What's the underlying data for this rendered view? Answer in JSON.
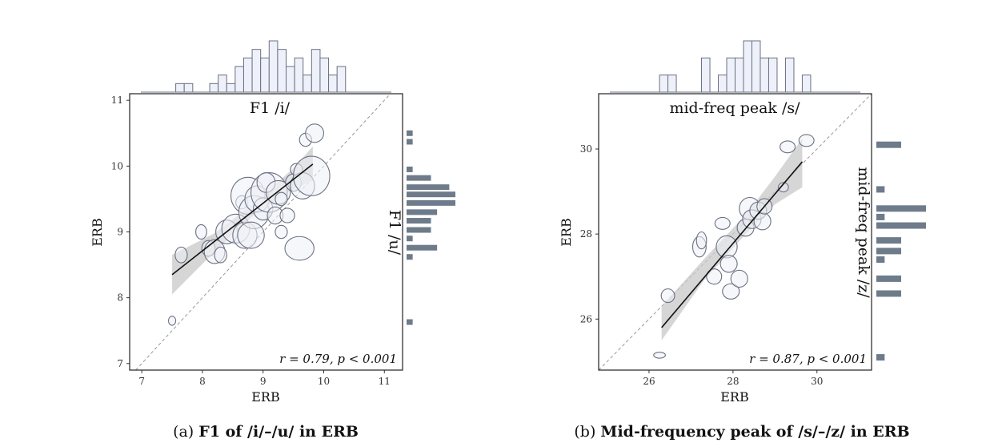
{
  "captions": [
    {
      "prefix": "(a)",
      "title": "F1 of /i/–/u/ in ERB"
    },
    {
      "prefix": "(b)",
      "title": "Mid-frequency peak of /s/–/z/ in ERB"
    }
  ],
  "chart_data": [
    {
      "type": "scatter",
      "title": "F1 /i/",
      "right_label": "F1 /u/",
      "xlabel": "ERB",
      "ylabel": "ERB",
      "xlim": [
        6.8,
        11.3
      ],
      "ylim": [
        6.9,
        11.1
      ],
      "xticks": [
        7,
        8,
        9,
        10,
        11
      ],
      "yticks": [
        7,
        8,
        9,
        10,
        11
      ],
      "stat": "r = 0.79, p < 0.001",
      "fit": {
        "x": [
          7.5,
          9.82
        ],
        "y": [
          8.35,
          10.03
        ]
      },
      "band": {
        "x": [
          7.5,
          8.2,
          8.9,
          9.5,
          9.82
        ],
        "lo": [
          8.05,
          8.7,
          9.3,
          9.65,
          9.78
        ],
        "hi": [
          8.65,
          8.98,
          9.47,
          9.97,
          10.3
        ]
      },
      "points": [
        {
          "x": 7.5,
          "y": 7.65,
          "rx": 0.06,
          "ry": 0.07
        },
        {
          "x": 7.65,
          "y": 8.65,
          "rx": 0.1,
          "ry": 0.12
        },
        {
          "x": 7.98,
          "y": 9.0,
          "rx": 0.09,
          "ry": 0.11
        },
        {
          "x": 8.1,
          "y": 8.75,
          "rx": 0.11,
          "ry": 0.12
        },
        {
          "x": 8.2,
          "y": 8.7,
          "rx": 0.17,
          "ry": 0.18
        },
        {
          "x": 8.3,
          "y": 8.65,
          "rx": 0.1,
          "ry": 0.12
        },
        {
          "x": 8.4,
          "y": 9.0,
          "rx": 0.18,
          "ry": 0.18
        },
        {
          "x": 8.55,
          "y": 9.05,
          "rx": 0.23,
          "ry": 0.22
        },
        {
          "x": 8.65,
          "y": 9.45,
          "rx": 0.1,
          "ry": 0.1
        },
        {
          "x": 8.7,
          "y": 8.95,
          "rx": 0.2,
          "ry": 0.2
        },
        {
          "x": 8.75,
          "y": 9.55,
          "rx": 0.28,
          "ry": 0.28
        },
        {
          "x": 8.85,
          "y": 9.3,
          "rx": 0.25,
          "ry": 0.25
        },
        {
          "x": 8.8,
          "y": 8.95,
          "rx": 0.22,
          "ry": 0.2
        },
        {
          "x": 8.9,
          "y": 9.5,
          "rx": 0.2,
          "ry": 0.2
        },
        {
          "x": 9.0,
          "y": 9.35,
          "rx": 0.16,
          "ry": 0.17
        },
        {
          "x": 9.1,
          "y": 9.6,
          "rx": 0.3,
          "ry": 0.3
        },
        {
          "x": 9.05,
          "y": 9.75,
          "rx": 0.15,
          "ry": 0.15
        },
        {
          "x": 9.2,
          "y": 9.25,
          "rx": 0.13,
          "ry": 0.13
        },
        {
          "x": 9.25,
          "y": 9.6,
          "rx": 0.2,
          "ry": 0.18
        },
        {
          "x": 9.3,
          "y": 9.5,
          "rx": 0.1,
          "ry": 0.1
        },
        {
          "x": 9.3,
          "y": 9.0,
          "rx": 0.1,
          "ry": 0.1
        },
        {
          "x": 9.4,
          "y": 9.25,
          "rx": 0.12,
          "ry": 0.11
        },
        {
          "x": 9.5,
          "y": 9.75,
          "rx": 0.13,
          "ry": 0.13
        },
        {
          "x": 9.55,
          "y": 9.95,
          "rx": 0.1,
          "ry": 0.09
        },
        {
          "x": 9.6,
          "y": 8.75,
          "rx": 0.24,
          "ry": 0.18
        },
        {
          "x": 9.65,
          "y": 9.7,
          "rx": 0.2,
          "ry": 0.2
        },
        {
          "x": 9.7,
          "y": 10.4,
          "rx": 0.1,
          "ry": 0.1
        },
        {
          "x": 9.8,
          "y": 9.85,
          "rx": 0.3,
          "ry": 0.3
        },
        {
          "x": 9.85,
          "y": 10.5,
          "rx": 0.15,
          "ry": 0.14
        }
      ],
      "top_hist": {
        "edges_start": 7.0,
        "bin_width": 0.14,
        "counts": [
          0,
          0,
          0,
          0,
          1,
          1,
          0,
          0,
          1,
          2,
          1,
          3,
          4,
          5,
          4,
          6,
          5,
          3,
          4,
          2,
          5,
          4,
          2,
          3
        ]
      },
      "right_hist": [
        {
          "y": 10.5,
          "n": 1
        },
        {
          "y": 10.37,
          "n": 1
        },
        {
          "y": 9.95,
          "n": 1
        },
        {
          "y": 9.82,
          "n": 4
        },
        {
          "y": 9.68,
          "n": 7
        },
        {
          "y": 9.57,
          "n": 8
        },
        {
          "y": 9.44,
          "n": 8
        },
        {
          "y": 9.3,
          "n": 5
        },
        {
          "y": 9.17,
          "n": 4
        },
        {
          "y": 9.03,
          "n": 4
        },
        {
          "y": 8.9,
          "n": 1
        },
        {
          "y": 8.76,
          "n": 5
        },
        {
          "y": 8.62,
          "n": 1
        },
        {
          "y": 7.63,
          "n": 1
        }
      ]
    },
    {
      "type": "scatter",
      "title": "mid-freq peak /s/",
      "right_label": "mid-freq peak /z/",
      "xlabel": "ERB",
      "ylabel": "ERB",
      "xlim": [
        24.8,
        31.3
      ],
      "ylim": [
        24.8,
        31.3
      ],
      "xticks": [
        26,
        28,
        30
      ],
      "yticks": [
        26,
        28,
        30
      ],
      "stat": "r = 0.87, p < 0.001",
      "fit": {
        "x": [
          26.3,
          29.65
        ],
        "y": [
          25.8,
          29.7
        ]
      },
      "band": {
        "x": [
          26.3,
          27.3,
          28.3,
          29.0,
          29.65
        ],
        "lo": [
          25.5,
          26.9,
          28.0,
          28.7,
          29.1
        ],
        "hi": [
          26.3,
          27.4,
          28.45,
          29.35,
          30.25
        ]
      },
      "points": [
        {
          "x": 26.25,
          "y": 25.15,
          "rx": 0.14,
          "ry": 0.07
        },
        {
          "x": 26.45,
          "y": 26.55,
          "rx": 0.16,
          "ry": 0.16
        },
        {
          "x": 27.2,
          "y": 27.7,
          "rx": 0.16,
          "ry": 0.24
        },
        {
          "x": 27.25,
          "y": 27.85,
          "rx": 0.12,
          "ry": 0.2
        },
        {
          "x": 27.55,
          "y": 27.0,
          "rx": 0.18,
          "ry": 0.18
        },
        {
          "x": 27.75,
          "y": 28.25,
          "rx": 0.18,
          "ry": 0.14
        },
        {
          "x": 27.85,
          "y": 27.7,
          "rx": 0.25,
          "ry": 0.26
        },
        {
          "x": 27.9,
          "y": 27.3,
          "rx": 0.2,
          "ry": 0.2
        },
        {
          "x": 27.95,
          "y": 26.65,
          "rx": 0.2,
          "ry": 0.18
        },
        {
          "x": 28.15,
          "y": 26.95,
          "rx": 0.2,
          "ry": 0.2
        },
        {
          "x": 28.3,
          "y": 28.15,
          "rx": 0.2,
          "ry": 0.2
        },
        {
          "x": 28.4,
          "y": 28.6,
          "rx": 0.25,
          "ry": 0.26
        },
        {
          "x": 28.45,
          "y": 28.35,
          "rx": 0.22,
          "ry": 0.22
        },
        {
          "x": 28.6,
          "y": 28.55,
          "rx": 0.2,
          "ry": 0.2
        },
        {
          "x": 28.7,
          "y": 28.3,
          "rx": 0.2,
          "ry": 0.2
        },
        {
          "x": 28.75,
          "y": 28.65,
          "rx": 0.18,
          "ry": 0.18
        },
        {
          "x": 29.2,
          "y": 29.1,
          "rx": 0.12,
          "ry": 0.11
        },
        {
          "x": 29.3,
          "y": 30.05,
          "rx": 0.18,
          "ry": 0.14
        },
        {
          "x": 29.75,
          "y": 30.2,
          "rx": 0.18,
          "ry": 0.14
        }
      ],
      "top_hist": {
        "edges_start": 26.25,
        "bin_width": 0.2,
        "counts": [
          1,
          1,
          0,
          0,
          0,
          2,
          0,
          1,
          2,
          2,
          3,
          3,
          2,
          2,
          0,
          2,
          0,
          1
        ]
      },
      "right_hist": [
        {
          "y": 30.1,
          "n": 3
        },
        {
          "y": 29.05,
          "n": 1
        },
        {
          "y": 28.6,
          "n": 6
        },
        {
          "y": 28.4,
          "n": 1
        },
        {
          "y": 28.2,
          "n": 6
        },
        {
          "y": 27.85,
          "n": 3
        },
        {
          "y": 27.6,
          "n": 3
        },
        {
          "y": 27.4,
          "n": 1
        },
        {
          "y": 26.95,
          "n": 3
        },
        {
          "y": 26.6,
          "n": 3
        },
        {
          "y": 25.1,
          "n": 1
        }
      ]
    }
  ]
}
